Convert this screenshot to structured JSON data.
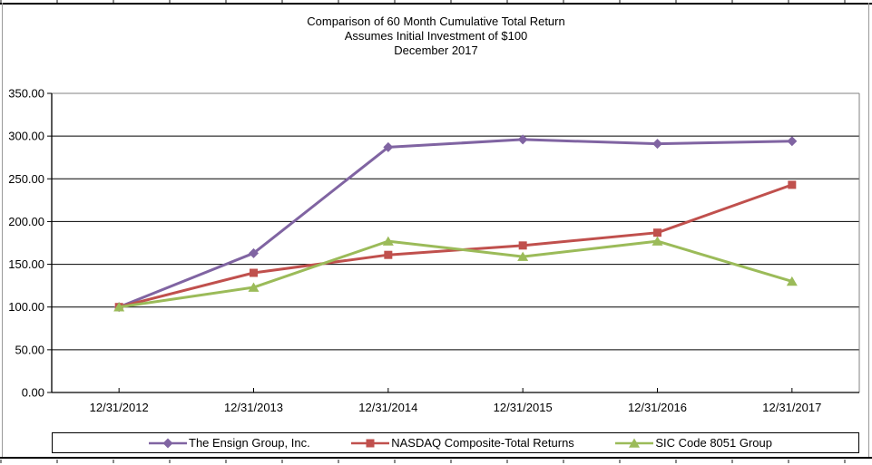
{
  "chart_data": {
    "type": "line",
    "title": "Comparison of 60 Month Cumulative Total Return",
    "subtitle": "Assumes Initial Investment of $100",
    "subtitle2": "December 2017",
    "categories": [
      "12/31/2012",
      "12/31/2013",
      "12/31/2014",
      "12/31/2015",
      "12/31/2016",
      "12/31/2017"
    ],
    "series": [
      {
        "name": "The Ensign Group, Inc.",
        "color": "#8064A2",
        "marker": "diamond",
        "values": [
          100,
          163,
          287,
          296,
          291,
          294
        ]
      },
      {
        "name": "NASDAQ Composite-Total Returns",
        "color": "#C0504D",
        "marker": "square",
        "values": [
          100,
          140,
          161,
          172,
          187,
          243
        ]
      },
      {
        "name": "SIC Code 8051 Group",
        "color": "#9BBB59",
        "marker": "triangle",
        "values": [
          100,
          123,
          177,
          159,
          177,
          130
        ]
      }
    ],
    "y_axis": {
      "min": 0,
      "max": 350,
      "step": 50,
      "tick_labels": [
        "0.00",
        "50.00",
        "100.00",
        "150.00",
        "200.00",
        "250.00",
        "300.00",
        "350.00"
      ]
    },
    "x_axis": {
      "tick_labels": [
        "12/31/2012",
        "12/31/2013",
        "12/31/2014",
        "12/31/2015",
        "12/31/2016",
        "12/31/2017"
      ]
    },
    "grid": true,
    "legend_position": "bottom",
    "colors": {
      "gridline": "#000000",
      "plot_border": "#808080",
      "axis": "#000000"
    }
  }
}
